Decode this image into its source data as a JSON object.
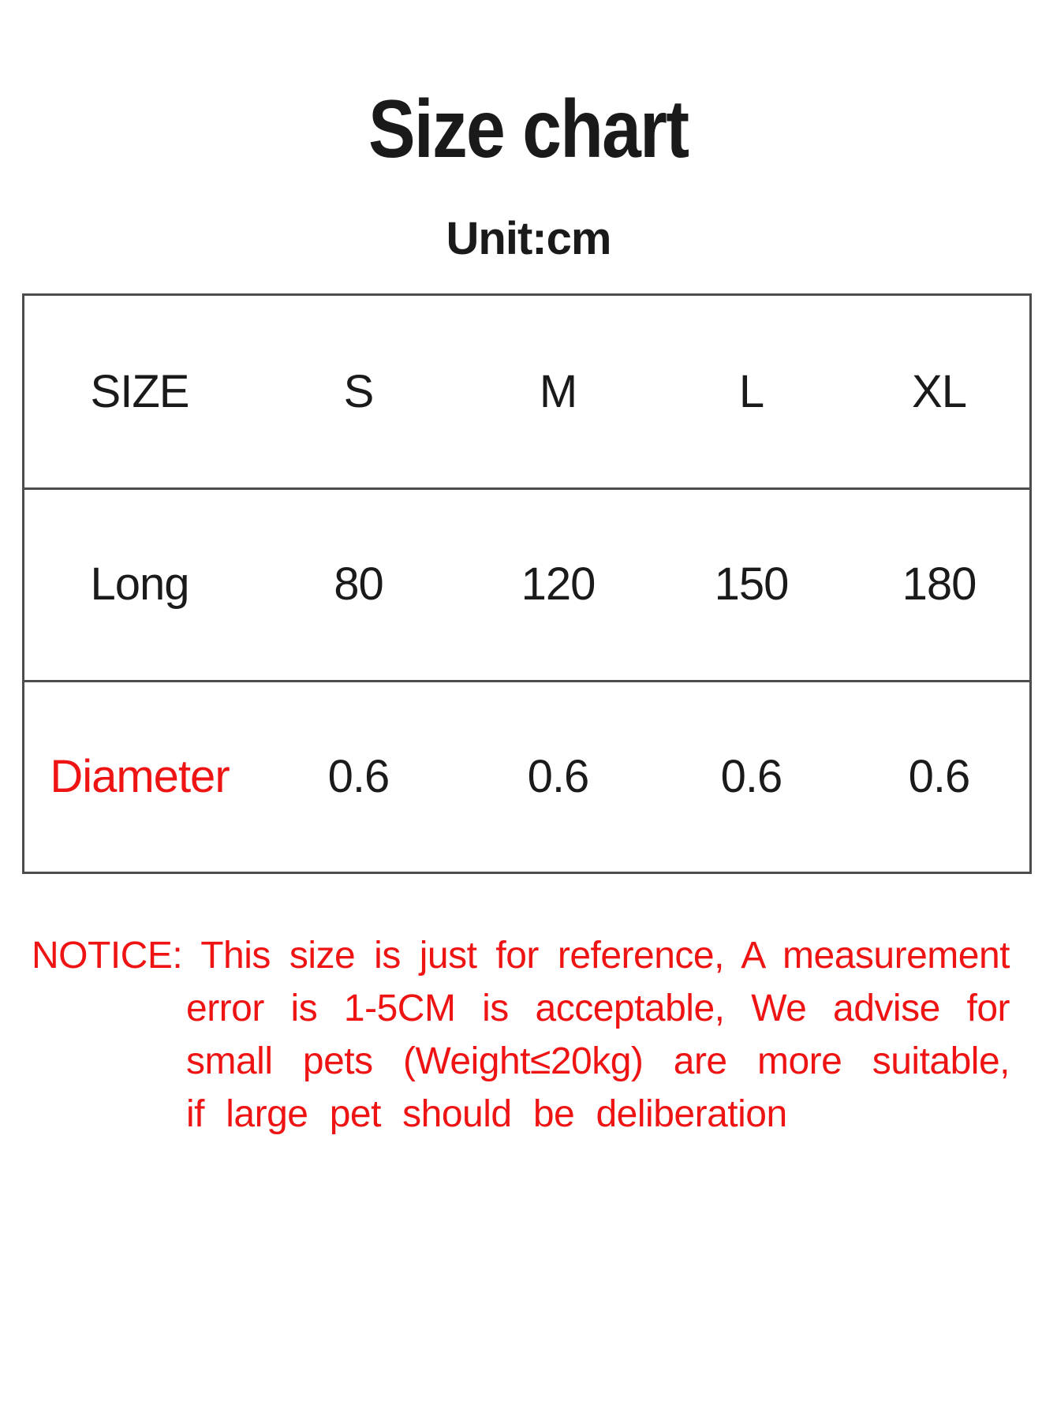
{
  "page": {
    "title": "Size chart",
    "unit_label": "Unit:cm"
  },
  "colors": {
    "text_black": "#1A1A1A",
    "accent_red": "#EE1414",
    "table_border": "#4D4D4D",
    "background": "#FFFFFF"
  },
  "size_table": {
    "header_row": {
      "label": "SIZE",
      "values": [
        "S",
        "M",
        "L",
        "XL"
      ]
    },
    "rows": [
      {
        "label": "Long",
        "values": [
          "80",
          "120",
          "150",
          "180"
        ]
      },
      {
        "label": "Diameter",
        "values": [
          "0.6",
          "0.6",
          "0.6",
          "0.6"
        ]
      }
    ]
  },
  "notice": {
    "lines": [
      "NOTICE: This size is just for reference, A measurement",
      "error is 1-5CM is acceptable, We advise for",
      "small pets (Weight≤20kg) are more suitable,",
      "if large pet should be deliberation"
    ],
    "full_text": "NOTICE: This size is just for reference, A measurement error is 1-5CM is acceptable, We advise for small pets (Weight≤20kg) are more suitable, if large pet should be deliberation"
  }
}
